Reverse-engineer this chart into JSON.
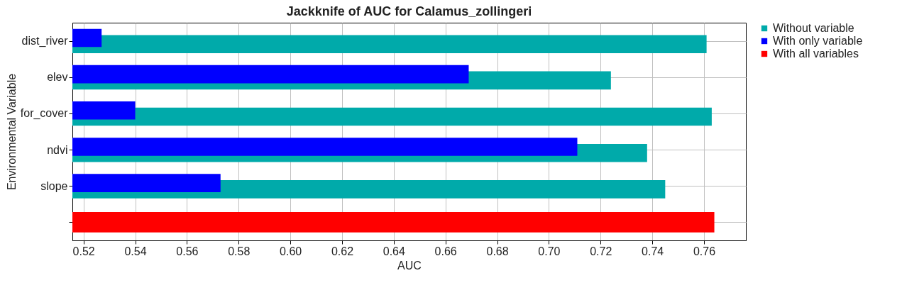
{
  "chart_data": {
    "type": "bar",
    "orientation": "horizontal",
    "title": "Jackknife of AUC for Calamus_zollingeri",
    "xlabel": "AUC",
    "ylabel": "Environmental Variable",
    "categories": [
      "dist_river",
      "elev",
      "for_cover",
      "ndvi",
      "slope",
      null
    ],
    "series": [
      {
        "name": "Without variable",
        "color": "#00aaaa",
        "values": [
          0.761,
          0.724,
          0.763,
          0.738,
          0.745,
          null
        ]
      },
      {
        "name": "With only variable",
        "color": "#0000ff",
        "values": [
          0.527,
          0.669,
          0.54,
          0.711,
          0.573,
          null
        ]
      },
      {
        "name": "With all variables",
        "color": "#ff0000",
        "values": [
          null,
          null,
          null,
          null,
          null,
          0.764
        ]
      }
    ],
    "xlim": [
      0.5157,
      0.7762
    ],
    "xticks": [
      0.52,
      0.54,
      0.56,
      0.58,
      {
        "value": 0.6,
        "label": "0.60"
      },
      0.62,
      0.64,
      0.66,
      0.68,
      {
        "value": 0.7,
        "label": "0.70"
      },
      0.72,
      0.74,
      0.76
    ],
    "grid": true,
    "legend": "top right"
  }
}
